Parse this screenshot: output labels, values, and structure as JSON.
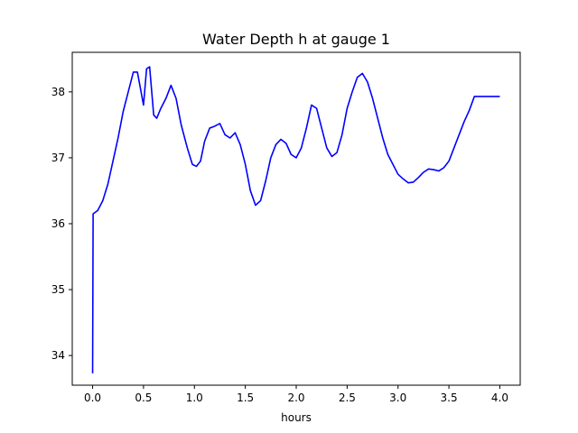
{
  "chart_data": {
    "type": "line",
    "title": "Water Depth h at gauge 1",
    "xlabel": "hours",
    "ylabel": "",
    "xlim": [
      -0.2,
      4.2
    ],
    "ylim": [
      33.55,
      38.6
    ],
    "xticks": [
      0.0,
      0.5,
      1.0,
      1.5,
      2.0,
      2.5,
      3.0,
      3.5,
      4.0
    ],
    "xtick_labels": [
      "0.0",
      "0.5",
      "1.0",
      "1.5",
      "2.0",
      "2.5",
      "3.0",
      "3.5",
      "4.0"
    ],
    "yticks": [
      34,
      35,
      36,
      37,
      38
    ],
    "ytick_labels": [
      "34",
      "35",
      "36",
      "37",
      "38"
    ],
    "grid": false,
    "series": [
      {
        "color": "#0000ff",
        "x": [
          0.0,
          0.005,
          0.05,
          0.1,
          0.15,
          0.2,
          0.25,
          0.3,
          0.35,
          0.4,
          0.44,
          0.47,
          0.5,
          0.53,
          0.56,
          0.6,
          0.63,
          0.67,
          0.72,
          0.77,
          0.82,
          0.87,
          0.93,
          0.98,
          1.02,
          1.06,
          1.1,
          1.15,
          1.2,
          1.25,
          1.3,
          1.35,
          1.4,
          1.45,
          1.5,
          1.55,
          1.6,
          1.65,
          1.7,
          1.75,
          1.8,
          1.85,
          1.9,
          1.95,
          2.0,
          2.05,
          2.1,
          2.15,
          2.2,
          2.25,
          2.3,
          2.35,
          2.4,
          2.45,
          2.5,
          2.55,
          2.6,
          2.65,
          2.7,
          2.75,
          2.8,
          2.85,
          2.9,
          2.95,
          3.0,
          3.05,
          3.1,
          3.15,
          3.2,
          3.25,
          3.3,
          3.35,
          3.4,
          3.45,
          3.5,
          3.55,
          3.6,
          3.65,
          3.7,
          3.75,
          3.8,
          3.85,
          3.9,
          3.95,
          4.0
        ],
        "y": [
          33.73,
          36.15,
          36.2,
          36.35,
          36.6,
          36.95,
          37.3,
          37.7,
          38.0,
          38.3,
          38.3,
          38.05,
          37.8,
          38.35,
          38.38,
          37.65,
          37.6,
          37.75,
          37.9,
          38.1,
          37.9,
          37.5,
          37.15,
          36.9,
          36.87,
          36.95,
          37.25,
          37.45,
          37.48,
          37.52,
          37.35,
          37.3,
          37.38,
          37.2,
          36.9,
          36.5,
          36.28,
          36.35,
          36.65,
          37.0,
          37.2,
          37.28,
          37.22,
          37.05,
          37.0,
          37.15,
          37.45,
          37.8,
          37.75,
          37.45,
          37.15,
          37.02,
          37.08,
          37.35,
          37.75,
          38.0,
          38.22,
          38.28,
          38.15,
          37.9,
          37.6,
          37.3,
          37.05,
          36.9,
          36.75,
          36.68,
          36.62,
          36.63,
          36.7,
          36.78,
          36.83,
          36.82,
          36.8,
          36.85,
          36.95,
          37.15,
          37.35,
          37.55,
          37.72,
          37.93,
          37.93,
          37.93,
          37.93,
          37.93,
          37.93
        ]
      }
    ]
  }
}
